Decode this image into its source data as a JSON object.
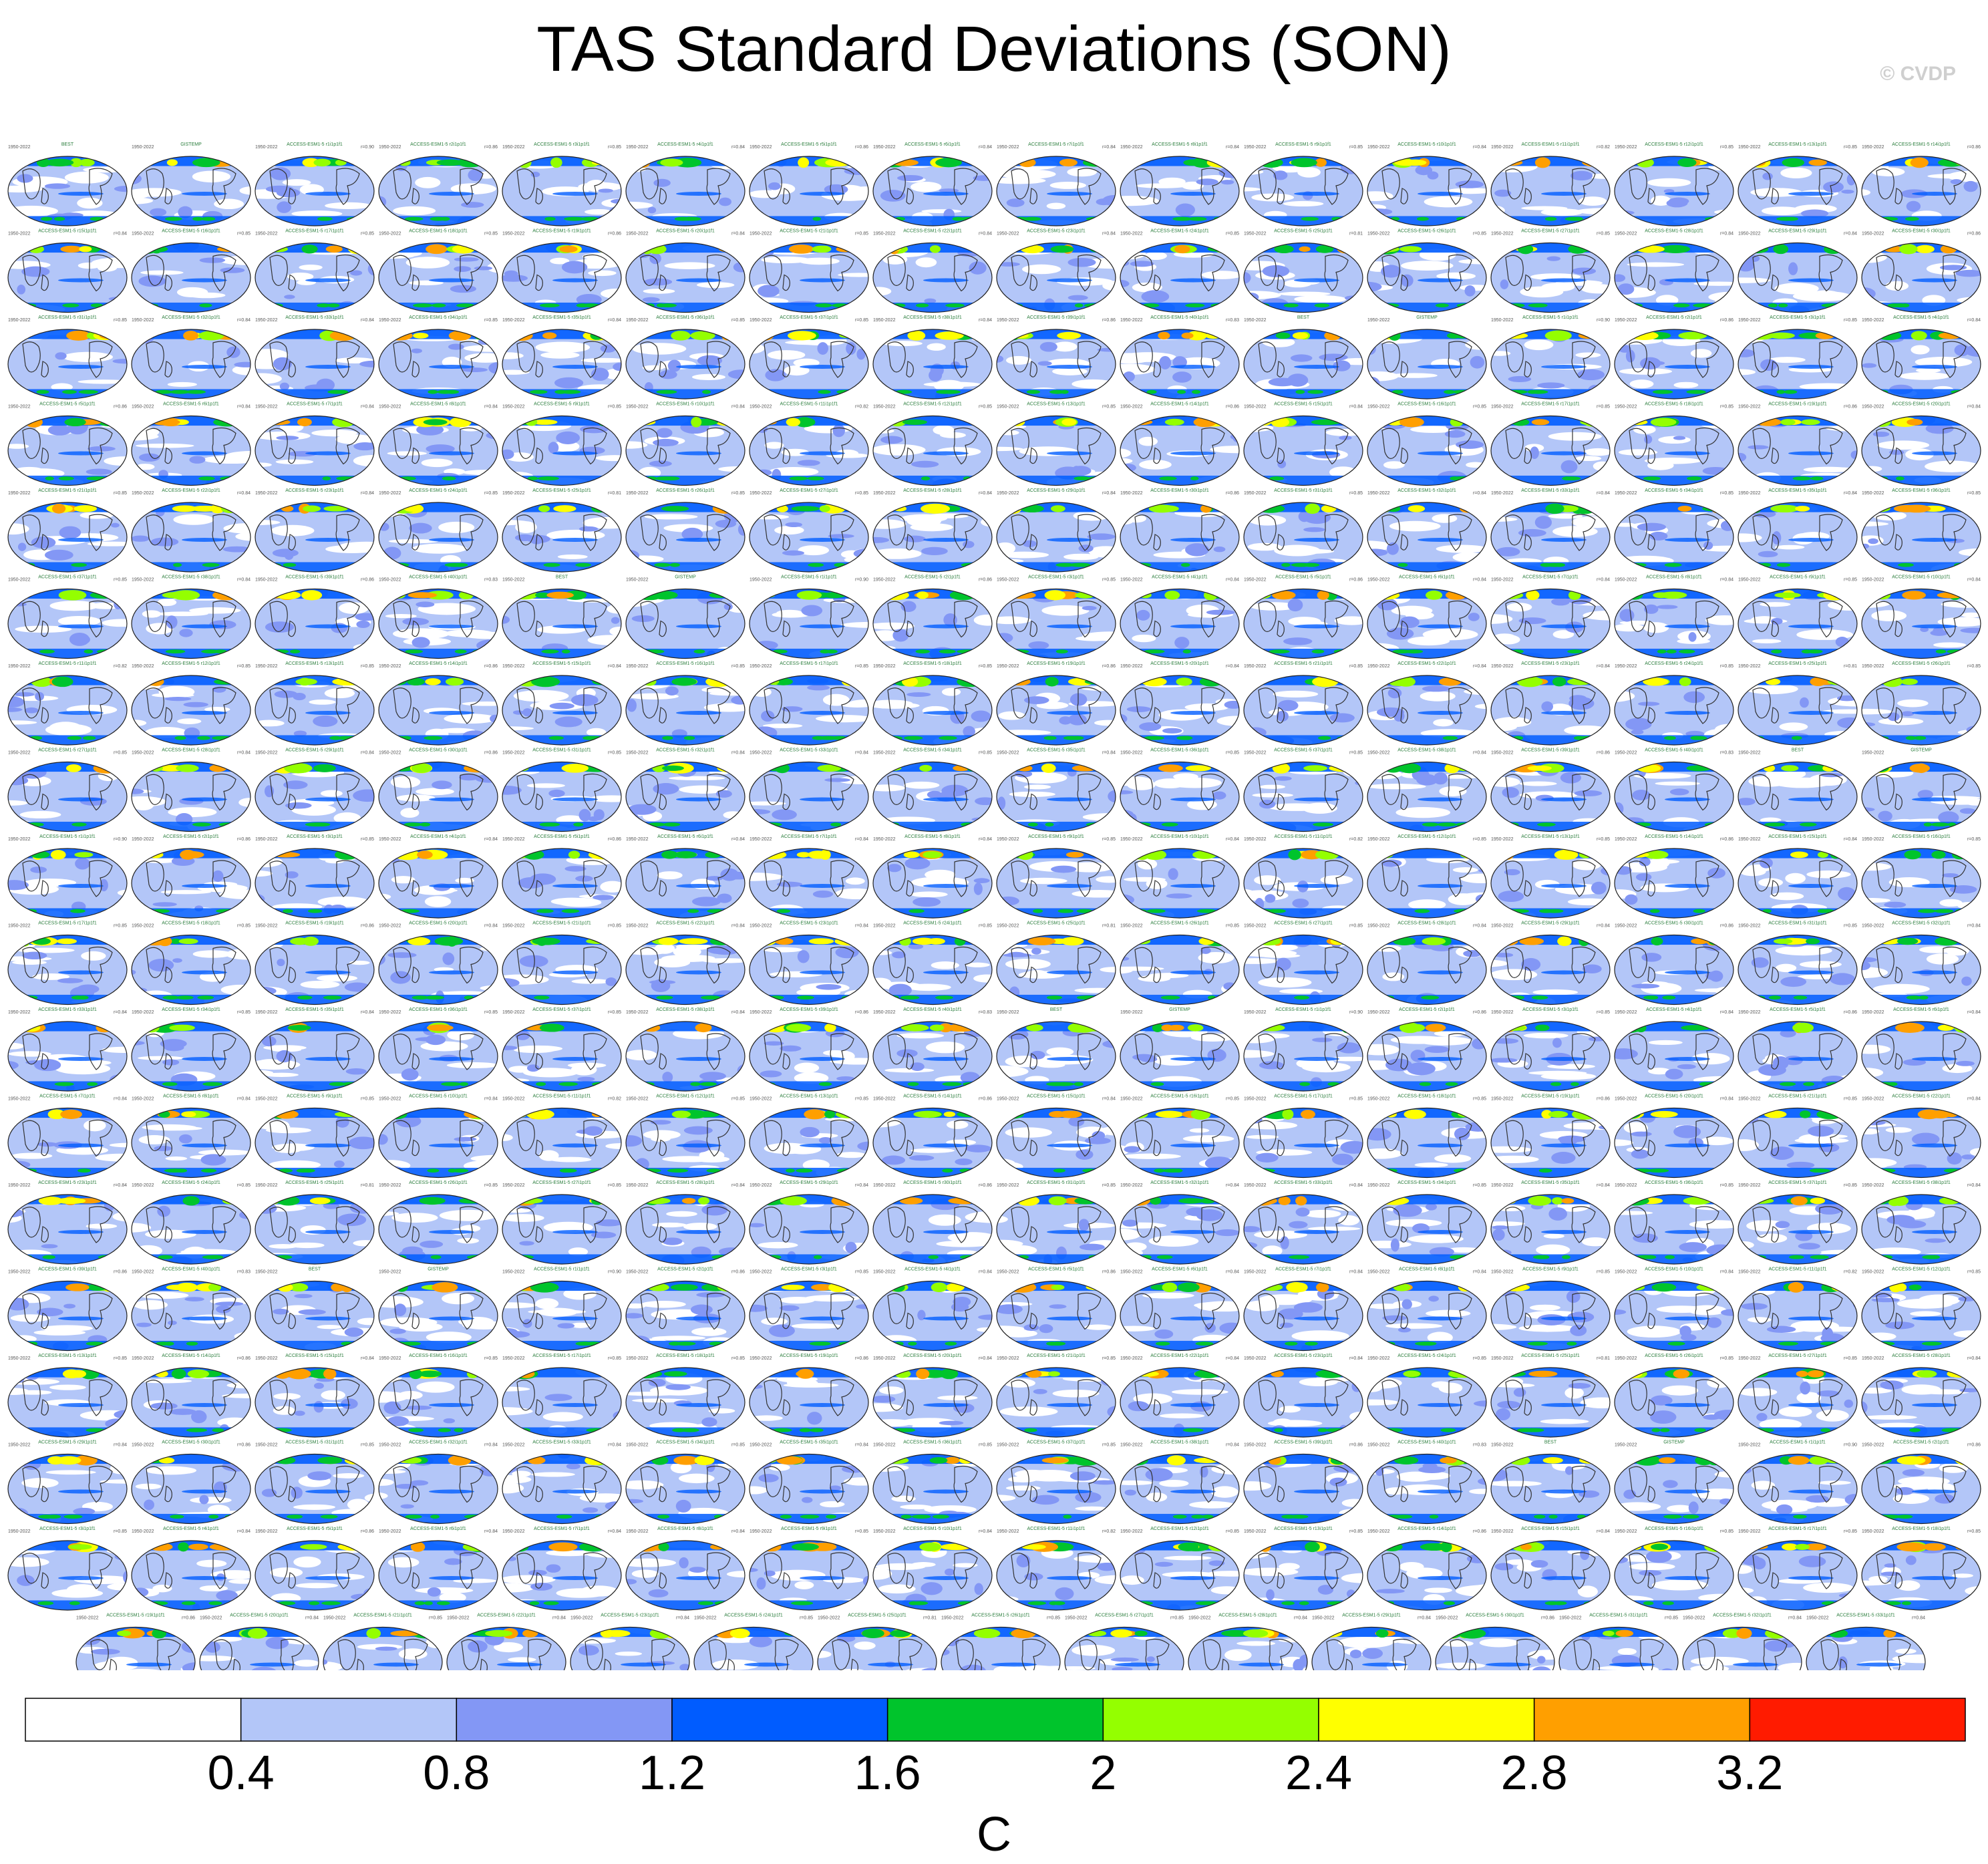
{
  "title": "TAS Standard Deviations (SON)",
  "watermark": "© CVDP",
  "chart_data": {
    "type": "heatmap",
    "title": "TAS Standard Deviations (SON)",
    "description": "Small-multiple global maps of seasonal surface air temperature standard deviations for observations and large-ensemble model members",
    "panel_grid": {
      "rows": 18,
      "columns": 16,
      "last_row_panels": 15
    },
    "panel_period": "1950-2022",
    "panels": [
      {
        "label": "BEST",
        "period": "1950-2022",
        "value": ""
      },
      {
        "label": "GISTEMP",
        "period": "1950-2022",
        "value": ""
      },
      {
        "label": "ACCESS-ESM1-5 r1i1p1f1",
        "period": "1950-2022",
        "value": "r=0.90"
      },
      {
        "label": "ACCESS-ESM1-5 r2i1p1f1",
        "period": "1950-2022",
        "value": "r=0.86"
      },
      {
        "label": "ACCESS-ESM1-5 r3i1p1f1",
        "period": "1950-2022",
        "value": "r=0.85"
      },
      {
        "label": "ACCESS-ESM1-5 r4i1p1f1",
        "period": "1950-2022",
        "value": "r=0.84"
      },
      {
        "label": "ACCESS-ESM1-5 r5i1p1f1",
        "period": "1950-2022",
        "value": "r=0.86"
      },
      {
        "label": "ACCESS-ESM1-5 r6i1p1f1",
        "period": "1950-2022",
        "value": "r=0.84"
      },
      {
        "label": "ACCESS-ESM1-5 r7i1p1f1",
        "period": "1950-2022",
        "value": "r=0.84"
      },
      {
        "label": "ACCESS-ESM1-5 r8i1p1f1",
        "period": "1950-2022",
        "value": "r=0.84"
      },
      {
        "label": "ACCESS-ESM1-5 r9i1p1f1",
        "period": "1950-2022",
        "value": "r=0.85"
      },
      {
        "label": "ACCESS-ESM1-5 r10i1p1f1",
        "period": "1950-2022",
        "value": "r=0.84"
      },
      {
        "label": "ACCESS-ESM1-5 r11i1p1f1",
        "period": "1950-2022",
        "value": "r=0.82"
      },
      {
        "label": "ACCESS-ESM1-5 r12i1p1f1",
        "period": "1950-2022",
        "value": "r=0.85"
      },
      {
        "label": "ACCESS-ESM1-5 r13i1p1f1",
        "period": "1950-2022",
        "value": "r=0.85"
      },
      {
        "label": "ACCESS-ESM1-5 r14i1p1f1",
        "period": "1950-2022",
        "value": "r=0.86"
      },
      {
        "label": "ACCESS-ESM1-5 r15i1p1f1",
        "period": "1950-2022",
        "value": "r=0.84"
      },
      {
        "label": "ACCESS-ESM1-5 r16i1p1f1",
        "period": "1950-2022",
        "value": "r=0.85"
      },
      {
        "label": "ACCESS-ESM1-5 r17i1p1f1",
        "period": "1950-2022",
        "value": "r=0.85"
      },
      {
        "label": "ACCESS-ESM1-5 r18i1p1f1",
        "period": "1950-2022",
        "value": "r=0.85"
      },
      {
        "label": "ACCESS-ESM1-5 r19i1p1f1",
        "period": "1950-2022",
        "value": "r=0.86"
      },
      {
        "label": "ACCESS-ESM1-5 r20i1p1f1",
        "period": "1950-2022",
        "value": "r=0.84"
      },
      {
        "label": "ACCESS-ESM1-5 r21i1p1f1",
        "period": "1950-2022",
        "value": "r=0.85"
      },
      {
        "label": "ACCESS-ESM1-5 r22i1p1f1",
        "period": "1950-2022",
        "value": "r=0.84"
      },
      {
        "label": "ACCESS-ESM1-5 r23i1p1f1",
        "period": "1950-2022",
        "value": "r=0.84"
      },
      {
        "label": "ACCESS-ESM1-5 r24i1p1f1",
        "period": "1950-2022",
        "value": "r=0.85"
      },
      {
        "label": "ACCESS-ESM1-5 r25i1p1f1",
        "period": "1950-2022",
        "value": "r=0.81"
      },
      {
        "label": "ACCESS-ESM1-5 r26i1p1f1",
        "period": "1950-2022",
        "value": "r=0.85"
      },
      {
        "label": "ACCESS-ESM1-5 r27i1p1f1",
        "period": "1950-2022",
        "value": "r=0.85"
      },
      {
        "label": "ACCESS-ESM1-5 r28i1p1f1",
        "period": "1950-2022",
        "value": "r=0.84"
      },
      {
        "label": "ACCESS-ESM1-5 r29i1p1f1",
        "period": "1950-2022",
        "value": "r=0.84"
      },
      {
        "label": "ACCESS-ESM1-5 r30i1p1f1",
        "period": "1950-2022",
        "value": "r=0.86"
      },
      {
        "label": "ACCESS-ESM1-5 r31i1p1f1",
        "period": "1950-2022",
        "value": "r=0.85"
      },
      {
        "label": "ACCESS-ESM1-5 r32i1p1f1",
        "period": "1950-2022",
        "value": "r=0.84"
      },
      {
        "label": "ACCESS-ESM1-5 r33i1p1f1",
        "period": "1950-2022",
        "value": "r=0.84"
      },
      {
        "label": "ACCESS-ESM1-5 r34i1p1f1",
        "period": "1950-2022",
        "value": "r=0.85"
      },
      {
        "label": "ACCESS-ESM1-5 r35i1p1f1",
        "period": "1950-2022",
        "value": "r=0.84"
      },
      {
        "label": "ACCESS-ESM1-5 r36i1p1f1",
        "period": "1950-2022",
        "value": "r=0.85"
      },
      {
        "label": "ACCESS-ESM1-5 r37i1p1f1",
        "period": "1950-2022",
        "value": "r=0.85"
      },
      {
        "label": "ACCESS-ESM1-5 r38i1p1f1",
        "period": "1950-2022",
        "value": "r=0.84"
      },
      {
        "label": "ACCESS-ESM1-5 r39i1p1f1",
        "period": "1950-2022",
        "value": "r=0.86"
      },
      {
        "label": "ACCESS-ESM1-5 r40i1p1f1",
        "period": "1950-2022",
        "value": "r=0.83"
      }
    ],
    "colorbar": {
      "levels": [
        0.4,
        0.8,
        1.2,
        1.6,
        2,
        2.4,
        2.8,
        3.2
      ],
      "tick_labels": [
        "0.4",
        "0.8",
        "1.2",
        "1.6",
        "2",
        "2.4",
        "2.8",
        "3.2"
      ],
      "colors": [
        "#ffffff",
        "#b3c6f8",
        "#8397f5",
        "#005cff",
        "#00c42c",
        "#94ff00",
        "#ffff00",
        "#ff9f00",
        "#ff1b00"
      ],
      "units": "C"
    },
    "colors": {
      "land_outline": "#333333",
      "panel_title": "#2a7d3c",
      "panel_text": "#555555"
    }
  }
}
